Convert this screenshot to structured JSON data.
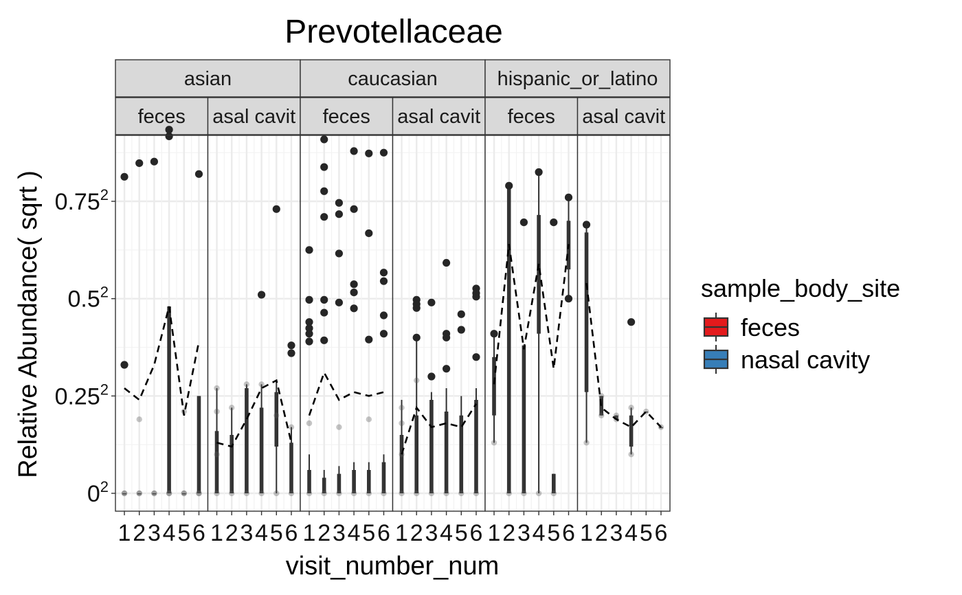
{
  "chart_data": {
    "type": "box",
    "title": "Prevotellaceae",
    "xlabel": "visit_number_num",
    "ylabel": "Relative Abundance( sqrt )",
    "y_scale": "sqrt",
    "y_ticks": [
      {
        "value": 0,
        "base": "0",
        "exp": "2"
      },
      {
        "value": 0.25,
        "base": "0.25",
        "exp": "2"
      },
      {
        "value": 0.5,
        "base": "0.5",
        "exp": "2"
      },
      {
        "value": 0.75,
        "base": "0.75",
        "exp": "2"
      }
    ],
    "x_categories": [
      "1",
      "2",
      "3",
      "4",
      "5",
      "6"
    ],
    "facet_cols": [
      "asian",
      "caucasian",
      "hispanic_or_latino"
    ],
    "facet_rows": [
      "feces",
      "nasal cavity"
    ],
    "facet_row_display": [
      "feces",
      "asal cavit"
    ],
    "grid": true,
    "legend": {
      "title": "sample_body_site",
      "position": "right",
      "entries": [
        {
          "label": "feces",
          "color": "#e41a1c"
        },
        {
          "label": "nasal cavity",
          "color": "#377eb8"
        }
      ]
    },
    "panels": [
      {
        "group": "asian",
        "site": "feces",
        "median_line": [
          0.27,
          0.24,
          0.33,
          0.48,
          0.2,
          0.39
        ],
        "boxes": [
          {
            "x": 1,
            "q1": 0.0,
            "q3": 0.0,
            "lo": 0.0,
            "hi": 0.0
          },
          {
            "x": 2,
            "q1": 0.0,
            "q3": 0.0,
            "lo": 0.0,
            "hi": 0.0
          },
          {
            "x": 3,
            "q1": 0.0,
            "q3": 0.0,
            "lo": 0.0,
            "hi": 0.0
          },
          {
            "x": 4,
            "q1": 0.0,
            "q3": 0.48,
            "lo": 0.0,
            "hi": 0.48
          },
          {
            "x": 5,
            "q1": 0.0,
            "q3": 0.0,
            "lo": 0.0,
            "hi": 0.0
          },
          {
            "x": 6,
            "q1": 0.0,
            "q3": 0.25,
            "lo": 0.0,
            "hi": 0.25
          }
        ],
        "points": [
          [
            1,
            0.813
          ],
          [
            1,
            0.33
          ],
          [
            1,
            0.0
          ],
          [
            1,
            0.0
          ],
          [
            2,
            0.848
          ],
          [
            2,
            0.19
          ],
          [
            2,
            0.0
          ],
          [
            2,
            0.0
          ],
          [
            3,
            0.852
          ],
          [
            3,
            0.0
          ],
          [
            3,
            0.0
          ],
          [
            4,
            0.934
          ],
          [
            4,
            0.917
          ],
          [
            4,
            0.0
          ],
          [
            4,
            0.0
          ],
          [
            5,
            0.21
          ],
          [
            5,
            0.0
          ],
          [
            5,
            0.0
          ],
          [
            6,
            0.82
          ],
          [
            6,
            0.0
          ],
          [
            6,
            0.0
          ]
        ]
      },
      {
        "group": "asian",
        "site": "nasal cavity",
        "median_line": [
          0.13,
          0.12,
          0.19,
          0.27,
          0.29,
          0.13
        ],
        "boxes": [
          {
            "x": 1,
            "q1": 0.0,
            "q3": 0.16,
            "lo": 0.0,
            "hi": 0.27
          },
          {
            "x": 2,
            "q1": 0.0,
            "q3": 0.15,
            "lo": 0.0,
            "hi": 0.22
          },
          {
            "x": 3,
            "q1": 0.0,
            "q3": 0.27,
            "lo": 0.0,
            "hi": 0.28
          },
          {
            "x": 4,
            "q1": 0.0,
            "q3": 0.22,
            "lo": 0.0,
            "hi": 0.28
          },
          {
            "x": 5,
            "q1": 0.12,
            "q3": 0.26,
            "lo": 0.0,
            "hi": 0.29
          },
          {
            "x": 6,
            "q1": 0.0,
            "q3": 0.13,
            "lo": 0.0,
            "hi": 0.17
          }
        ],
        "points": [
          [
            1,
            0.27
          ],
          [
            1,
            0.21
          ],
          [
            1,
            0.1
          ],
          [
            1,
            0.0
          ],
          [
            2,
            0.22
          ],
          [
            2,
            0.0
          ],
          [
            3,
            0.28
          ],
          [
            3,
            0.0
          ],
          [
            4,
            0.51
          ],
          [
            4,
            0.28
          ],
          [
            4,
            0.0
          ],
          [
            5,
            0.73
          ],
          [
            5,
            0.2
          ],
          [
            5,
            0.0
          ],
          [
            6,
            0.38
          ],
          [
            6,
            0.36
          ],
          [
            6,
            0.17
          ],
          [
            6,
            0.0
          ]
        ]
      },
      {
        "group": "caucasian",
        "site": "feces",
        "median_line": [
          0.2,
          0.31,
          0.24,
          0.26,
          0.25,
          0.26
        ],
        "boxes": [
          {
            "x": 1,
            "q1": 0.0,
            "q3": 0.06,
            "lo": 0.0,
            "hi": 0.1
          },
          {
            "x": 2,
            "q1": 0.0,
            "q3": 0.04,
            "lo": 0.0,
            "hi": 0.06
          },
          {
            "x": 3,
            "q1": 0.0,
            "q3": 0.05,
            "lo": 0.0,
            "hi": 0.07
          },
          {
            "x": 4,
            "q1": 0.0,
            "q3": 0.06,
            "lo": 0.0,
            "hi": 0.08
          },
          {
            "x": 5,
            "q1": 0.0,
            "q3": 0.06,
            "lo": 0.0,
            "hi": 0.08
          },
          {
            "x": 6,
            "q1": 0.0,
            "q3": 0.08,
            "lo": 0.0,
            "hi": 0.1
          }
        ],
        "points": [
          [
            1,
            0.625
          ],
          [
            1,
            0.497
          ],
          [
            1,
            0.44
          ],
          [
            1,
            0.424
          ],
          [
            1,
            0.41
          ],
          [
            1,
            0.39
          ],
          [
            1,
            0.18
          ],
          [
            1,
            0.0
          ],
          [
            2,
            0.909
          ],
          [
            2,
            0.838
          ],
          [
            2,
            0.776
          ],
          [
            2,
            0.71
          ],
          [
            2,
            0.497
          ],
          [
            2,
            0.464
          ],
          [
            2,
            0.393
          ],
          [
            2,
            0.0
          ],
          [
            3,
            0.746
          ],
          [
            3,
            0.717
          ],
          [
            3,
            0.616
          ],
          [
            3,
            0.49
          ],
          [
            3,
            0.17
          ],
          [
            3,
            0.0
          ],
          [
            4,
            0.879
          ],
          [
            4,
            0.73
          ],
          [
            4,
            0.537
          ],
          [
            4,
            0.516
          ],
          [
            4,
            0.475
          ],
          [
            4,
            0.0
          ],
          [
            5,
            0.873
          ],
          [
            5,
            0.668
          ],
          [
            5,
            0.395
          ],
          [
            5,
            0.19
          ],
          [
            5,
            0.0
          ],
          [
            6,
            0.875
          ],
          [
            6,
            0.567
          ],
          [
            6,
            0.545
          ],
          [
            6,
            0.457
          ],
          [
            6,
            0.41
          ],
          [
            6,
            0.0
          ]
        ]
      },
      {
        "group": "caucasian",
        "site": "nasal cavity",
        "median_line": [
          0.1,
          0.22,
          0.17,
          0.18,
          0.17,
          0.23
        ],
        "boxes": [
          {
            "x": 1,
            "q1": 0.0,
            "q3": 0.15,
            "lo": 0.0,
            "hi": 0.24
          },
          {
            "x": 2,
            "q1": 0.0,
            "q3": 0.2,
            "lo": 0.0,
            "hi": 0.4
          },
          {
            "x": 3,
            "q1": 0.0,
            "q3": 0.24,
            "lo": 0.0,
            "hi": 0.26
          },
          {
            "x": 4,
            "q1": 0.0,
            "q3": 0.21,
            "lo": 0.0,
            "hi": 0.27
          },
          {
            "x": 5,
            "q1": 0.0,
            "q3": 0.2,
            "lo": 0.0,
            "hi": 0.25
          },
          {
            "x": 6,
            "q1": 0.0,
            "q3": 0.24,
            "lo": 0.0,
            "hi": 0.27
          }
        ],
        "points": [
          [
            1,
            0.22
          ],
          [
            1,
            0.18
          ],
          [
            1,
            0.1
          ],
          [
            1,
            0.0
          ],
          [
            2,
            0.497
          ],
          [
            2,
            0.486
          ],
          [
            2,
            0.476
          ],
          [
            2,
            0.4
          ],
          [
            2,
            0.29
          ],
          [
            2,
            0.0
          ],
          [
            3,
            0.49
          ],
          [
            3,
            0.3
          ],
          [
            3,
            0.0
          ],
          [
            4,
            0.592
          ],
          [
            4,
            0.41
          ],
          [
            4,
            0.4
          ],
          [
            4,
            0.32
          ],
          [
            4,
            0.0
          ],
          [
            5,
            0.46
          ],
          [
            5,
            0.42
          ],
          [
            5,
            0.0
          ],
          [
            6,
            0.526
          ],
          [
            6,
            0.514
          ],
          [
            6,
            0.505
          ],
          [
            6,
            0.35
          ],
          [
            6,
            0.0
          ]
        ]
      },
      {
        "group": "hispanic_or_latino",
        "site": "feces",
        "median_line": [
          0.28,
          0.64,
          0.37,
          0.59,
          0.32,
          0.64
        ],
        "boxes": [
          {
            "x": 1,
            "q1": 0.2,
            "q3": 0.35,
            "lo": 0.13,
            "hi": 0.41
          },
          {
            "x": 2,
            "q1": 0.0,
            "q3": 0.79,
            "lo": 0.0,
            "hi": 0.79
          },
          {
            "x": 3,
            "q1": 0.0,
            "q3": 0.38,
            "lo": 0.0,
            "hi": 0.38
          },
          {
            "x": 4,
            "q1": 0.41,
            "q3": 0.715,
            "lo": 0.0,
            "hi": 0.825
          },
          {
            "x": 5,
            "q1": 0.0,
            "q3": 0.05,
            "lo": 0.0,
            "hi": 0.05
          },
          {
            "x": 6,
            "q1": 0.575,
            "q3": 0.7,
            "lo": 0.5,
            "hi": 0.76
          }
        ],
        "points": [
          [
            1,
            0.41
          ],
          [
            1,
            0.13
          ],
          [
            2,
            0.79
          ],
          [
            2,
            0.0
          ],
          [
            3,
            0.696
          ],
          [
            3,
            0.0
          ],
          [
            4,
            0.825
          ],
          [
            4,
            0.0
          ],
          [
            5,
            0.696
          ],
          [
            5,
            0.0
          ],
          [
            6,
            0.76
          ],
          [
            6,
            0.5
          ]
        ]
      },
      {
        "group": "hispanic_or_latino",
        "site": "nasal cavity",
        "median_line": [
          0.54,
          0.22,
          0.19,
          0.17,
          0.21,
          0.17
        ],
        "boxes": [
          {
            "x": 1,
            "q1": 0.26,
            "q3": 0.67,
            "lo": 0.13,
            "hi": 0.69
          },
          {
            "x": 2,
            "q1": 0.2,
            "q3": 0.25,
            "lo": 0.2,
            "hi": 0.25
          },
          {
            "x": 3,
            "q1": 0.19,
            "q3": 0.2,
            "lo": 0.19,
            "hi": 0.2
          },
          {
            "x": 4,
            "q1": 0.12,
            "q3": 0.2,
            "lo": 0.1,
            "hi": 0.22
          },
          {
            "x": 5,
            "q1": 0.21,
            "q3": 0.21,
            "lo": 0.21,
            "hi": 0.21
          },
          {
            "x": 6,
            "q1": 0.17,
            "q3": 0.17,
            "lo": 0.17,
            "hi": 0.17
          }
        ],
        "points": [
          [
            1,
            0.69
          ],
          [
            1,
            0.13
          ],
          [
            2,
            0.25
          ],
          [
            2,
            0.2
          ],
          [
            3,
            0.2
          ],
          [
            3,
            0.19
          ],
          [
            4,
            0.44
          ],
          [
            4,
            0.22
          ],
          [
            4,
            0.1
          ],
          [
            5,
            0.21
          ],
          [
            6,
            0.17
          ]
        ]
      }
    ]
  }
}
